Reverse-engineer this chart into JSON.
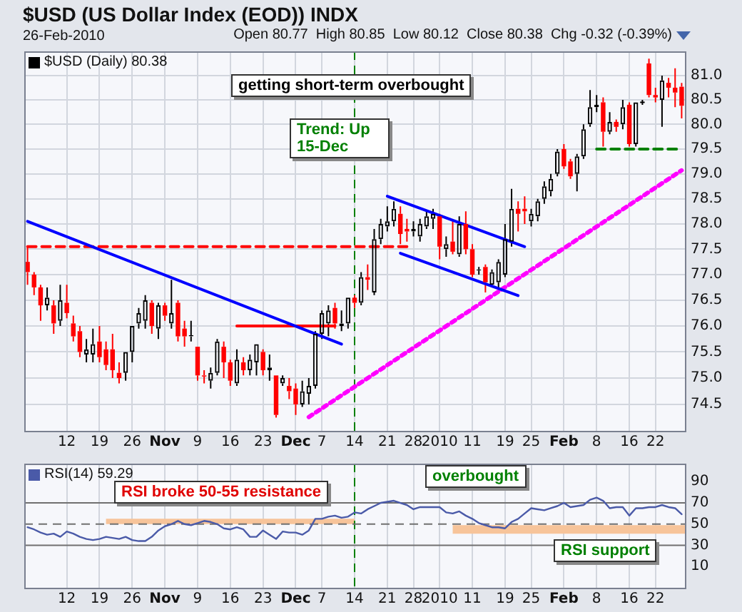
{
  "chart_data": [
    {
      "type": "candlestick",
      "title": "$USD (US Dollar Index (EOD)) INDX",
      "subtitle": "26-Feb-2010",
      "annotations": [
        "Open 80.77  High 80.85  Low 80.12  Close 80.38  Chg -0.32 (-0.39%)",
        "getting short-term overbought",
        "Trend: Up 15-Dec"
      ],
      "categories": [
        null,
        null,
        null,
        null,
        null,
        null,
        "12",
        null,
        null,
        null,
        null,
        "19",
        null,
        null,
        null,
        null,
        "26",
        null,
        null,
        null,
        null,
        "Nov",
        null,
        null,
        null,
        null,
        "9",
        null,
        null,
        null,
        null,
        "16",
        null,
        null,
        null,
        null,
        "23",
        null,
        null,
        null,
        null,
        "Dec",
        null,
        null,
        null,
        "7",
        null,
        null,
        null,
        null,
        "14",
        null,
        null,
        null,
        null,
        "21",
        null,
        null,
        null,
        "28",
        null,
        null,
        null,
        "2010",
        null,
        null,
        null,
        null,
        "11",
        null,
        null,
        null,
        null,
        "19",
        null,
        null,
        null,
        "25",
        null,
        null,
        null,
        null,
        "Feb",
        null,
        null,
        null,
        null,
        "8",
        null,
        null,
        null,
        null,
        "16",
        null,
        null,
        null,
        "22",
        null,
        null,
        null,
        null
      ],
      "series": [
        {
          "name": "$USD (Daily) 80.38",
          "type": "candlestick",
          "color": "#000000",
          "colors": [
            "#ff0000",
            "#ff0000",
            "#ff0000",
            "#000000",
            "#ff0000",
            "#000000",
            "#ff0000",
            "#ff0000",
            "#ff0000",
            "#000000",
            "#000000",
            "#ff0000",
            "#ff0000",
            "#ff0000",
            "#ff0000",
            "#000000",
            "#000000",
            "#000000",
            "#000000",
            "#ff0000",
            "#000000",
            "#ff0000",
            "#000000",
            "#ff0000",
            "#ff0000",
            "#000000",
            "#ff0000",
            "#ff0000",
            "#000000",
            "#000000",
            "#ff0000",
            "#ff0000",
            "#000000",
            "#ff0000",
            "#000000",
            "#000000",
            "#ff0000",
            "#000000",
            "#ff0000",
            "#000000",
            "#ff0000",
            "#ff0000",
            "#000000",
            "#000000",
            "#000000",
            "#000000",
            "#000000",
            "#ff0000",
            "#000000",
            "#000000",
            "#ff0000",
            "#000000",
            "#ff0000",
            "#000000",
            "#000000",
            "#000000",
            "#000000",
            "#ff0000",
            "#ff0000",
            "#000000",
            "#000000",
            "#000000",
            "#000000",
            "#ff0000",
            "#000000",
            "#ff0000",
            "#000000",
            "#ff0000",
            "#ff0000",
            "#000000",
            "#ff0000",
            "#000000",
            "#000000",
            "#000000",
            "#000000",
            "#ff0000",
            "#ff0000",
            "#000000",
            "#000000",
            "#000000",
            "#000000",
            "#000000",
            "#ff0000",
            "#ff0000",
            "#000000",
            "#000000",
            "#000000",
            "#000000",
            "#ff0000",
            "#000000",
            "#ff0000",
            "#000000",
            "#ff0000",
            "#000000",
            "#000000",
            "#ff0000",
            "#ff0000",
            "#000000",
            "#ff0000",
            "#ff0000",
            "#ff0000"
          ],
          "ohlc": [
            [
              77.25,
              77.55,
              76.8,
              77.05
            ],
            [
              77.0,
              77.05,
              76.6,
              76.75
            ],
            [
              76.75,
              76.8,
              76.1,
              76.4
            ],
            [
              76.4,
              76.75,
              76.3,
              76.55
            ],
            [
              76.4,
              76.5,
              75.85,
              76.05
            ],
            [
              76.1,
              76.8,
              76.0,
              76.5
            ],
            [
              76.45,
              76.8,
              76.15,
              76.25
            ],
            [
              76.05,
              76.2,
              75.7,
              75.8
            ],
            [
              75.9,
              76.0,
              75.4,
              75.5
            ],
            [
              75.45,
              75.75,
              75.3,
              75.55
            ],
            [
              75.45,
              75.95,
              75.3,
              75.65
            ],
            [
              75.7,
              76.0,
              75.3,
              75.4
            ],
            [
              75.55,
              75.7,
              75.15,
              75.25
            ],
            [
              75.55,
              75.85,
              75.0,
              75.15
            ],
            [
              75.1,
              75.3,
              74.9,
              75.0
            ],
            [
              75.1,
              75.5,
              74.95,
              75.5
            ],
            [
              75.5,
              76.0,
              75.3,
              76.0
            ],
            [
              76.05,
              76.35,
              75.95,
              76.25
            ],
            [
              76.1,
              76.6,
              75.95,
              76.5
            ],
            [
              76.45,
              76.5,
              75.85,
              76.0
            ],
            [
              75.95,
              76.45,
              75.75,
              76.4
            ],
            [
              76.4,
              76.45,
              76.1,
              76.2
            ],
            [
              76.05,
              76.9,
              75.95,
              76.25
            ],
            [
              76.45,
              76.5,
              75.7,
              75.8
            ],
            [
              75.95,
              76.1,
              75.6,
              75.8
            ],
            [
              75.8,
              76.1,
              75.7,
              75.82
            ],
            [
              75.6,
              75.6,
              74.95,
              75.05
            ],
            [
              75.05,
              75.15,
              74.9,
              75.03
            ],
            [
              74.95,
              75.2,
              74.8,
              75.1
            ],
            [
              75.1,
              75.75,
              75.05,
              75.7
            ],
            [
              75.6,
              75.7,
              75.0,
              75.3
            ],
            [
              75.3,
              75.35,
              74.85,
              74.95
            ],
            [
              74.9,
              75.55,
              74.85,
              75.35
            ],
            [
              75.3,
              75.4,
              75.05,
              75.15
            ],
            [
              75.15,
              75.45,
              75.05,
              75.35
            ],
            [
              75.3,
              75.65,
              75.05,
              75.65
            ],
            [
              75.5,
              75.55,
              75.05,
              75.15
            ],
            [
              75.15,
              75.45,
              74.95,
              75.2
            ],
            [
              75.05,
              75.05,
              74.25,
              74.3
            ],
            [
              74.9,
              75.05,
              74.85,
              75.0
            ],
            [
              74.85,
              75.0,
              74.6,
              74.75
            ],
            [
              74.8,
              74.9,
              74.3,
              74.5
            ],
            [
              74.5,
              74.95,
              74.45,
              74.75
            ],
            [
              74.7,
              75.0,
              74.5,
              74.85
            ],
            [
              74.85,
              75.9,
              74.8,
              75.85
            ],
            [
              75.85,
              76.3,
              75.75,
              76.25
            ],
            [
              76.05,
              76.4,
              75.8,
              76.3
            ],
            [
              76.35,
              76.45,
              75.95,
              76.05
            ],
            [
              76.0,
              76.3,
              75.9,
              76.05
            ],
            [
              76.05,
              76.55,
              75.95,
              76.55
            ],
            [
              76.55,
              76.6,
              76.35,
              76.45
            ],
            [
              76.45,
              77.05,
              76.4,
              76.95
            ],
            [
              76.95,
              77.2,
              76.7,
              76.9
            ],
            [
              76.65,
              77.9,
              76.6,
              77.7
            ],
            [
              77.7,
              78.1,
              77.6,
              78.0
            ],
            [
              77.95,
              78.35,
              77.85,
              78.05
            ],
            [
              78.05,
              78.45,
              77.95,
              78.3
            ],
            [
              78.2,
              78.35,
              77.6,
              77.8
            ],
            [
              77.9,
              78.1,
              77.65,
              77.85
            ],
            [
              77.85,
              78.05,
              77.75,
              77.9
            ],
            [
              77.75,
              78.1,
              77.65,
              78.0
            ],
            [
              77.95,
              78.25,
              77.9,
              78.15
            ],
            [
              78.1,
              78.3,
              77.9,
              78.2
            ],
            [
              78.15,
              78.2,
              77.3,
              77.55
            ],
            [
              77.5,
              77.75,
              77.35,
              77.6
            ],
            [
              77.65,
              78.05,
              77.4,
              77.45
            ],
            [
              77.4,
              78.15,
              77.35,
              78.0
            ],
            [
              78.0,
              78.25,
              77.4,
              77.5
            ],
            [
              77.5,
              77.6,
              76.95,
              77.0
            ],
            [
              77.08,
              77.15,
              77.0,
              77.1
            ],
            [
              77.15,
              77.2,
              76.65,
              76.85
            ],
            [
              76.8,
              77.1,
              76.75,
              77.05
            ],
            [
              76.85,
              77.3,
              76.75,
              77.25
            ],
            [
              77.0,
              78.0,
              76.95,
              77.7
            ],
            [
              77.65,
              78.7,
              77.55,
              78.3
            ],
            [
              78.3,
              78.45,
              77.85,
              78.2
            ],
            [
              78.3,
              78.55,
              78.0,
              78.25
            ],
            [
              78.05,
              78.3,
              77.95,
              78.2
            ],
            [
              78.15,
              78.5,
              78.05,
              78.45
            ],
            [
              78.5,
              78.85,
              78.4,
              78.75
            ],
            [
              78.65,
              79.0,
              78.55,
              78.9
            ],
            [
              79.0,
              79.5,
              78.95,
              79.45
            ],
            [
              79.5,
              79.6,
              79.1,
              79.15
            ],
            [
              79.25,
              79.3,
              78.9,
              78.95
            ],
            [
              79.0,
              79.4,
              78.65,
              79.35
            ],
            [
              79.35,
              80.0,
              79.3,
              79.9
            ],
            [
              80.0,
              80.7,
              79.95,
              80.35
            ],
            [
              80.35,
              80.6,
              80.25,
              80.4
            ],
            [
              80.45,
              80.55,
              79.55,
              79.85
            ],
            [
              79.85,
              80.25,
              79.8,
              80.05
            ],
            [
              80.05,
              80.1,
              79.85,
              79.95
            ],
            [
              80.0,
              80.5,
              79.9,
              80.35
            ],
            [
              80.4,
              80.45,
              79.55,
              79.6
            ],
            [
              79.6,
              80.45,
              79.55,
              80.45
            ],
            [
              80.45,
              80.5,
              80.4,
              80.45
            ],
            [
              81.25,
              81.35,
              80.55,
              80.6
            ],
            [
              80.6,
              80.75,
              80.45,
              80.55
            ],
            [
              80.5,
              81.0,
              79.95,
              80.9
            ],
            [
              80.85,
              80.95,
              80.55,
              80.75
            ],
            [
              80.75,
              81.15,
              80.35,
              80.65
            ],
            [
              80.77,
              80.85,
              80.12,
              80.38
            ]
          ]
        },
        {
          "type": "line",
          "color": "#0000ff",
          "line_style": "solid",
          "values": [
            78.05,
            null,
            null,
            null,
            null,
            null,
            null,
            null,
            null,
            null,
            null,
            null,
            null,
            null,
            null,
            null,
            null,
            null,
            null,
            null,
            null,
            null,
            null,
            null,
            null,
            null,
            null,
            null,
            null,
            null,
            null,
            null,
            null,
            null,
            null,
            null,
            null,
            null,
            null,
            null,
            null,
            null,
            null,
            null,
            null,
            null,
            null,
            null,
            75.65,
            null,
            null,
            null,
            null,
            null,
            null,
            null,
            null,
            null,
            null,
            null,
            null,
            null,
            null,
            null,
            null,
            null,
            null,
            null,
            null,
            null,
            null,
            null,
            null,
            null,
            null,
            null,
            null,
            null,
            null,
            null,
            null,
            null,
            null,
            null,
            null,
            null,
            null,
            null,
            null,
            null,
            null,
            null,
            null,
            null,
            null,
            null,
            null,
            null,
            null,
            null,
            null
          ]
        },
        {
          "type": "line",
          "color": "#ff0000",
          "line_style": "dashed",
          "values": [
            77.55,
            null,
            null,
            null,
            null,
            null,
            null,
            null,
            null,
            null,
            null,
            null,
            null,
            null,
            null,
            null,
            null,
            null,
            null,
            null,
            null,
            null,
            null,
            null,
            null,
            null,
            null,
            null,
            null,
            null,
            null,
            null,
            null,
            null,
            null,
            null,
            null,
            null,
            null,
            null,
            null,
            null,
            null,
            null,
            null,
            null,
            null,
            null,
            null,
            null,
            null,
            null,
            null,
            null,
            null,
            null,
            null,
            null,
            77.55,
            null,
            null,
            null,
            null,
            null,
            null,
            null,
            null,
            null,
            null,
            null,
            null,
            null,
            null,
            null,
            null,
            null,
            null,
            null,
            null,
            null,
            null,
            null,
            null,
            null,
            null,
            null,
            null,
            null,
            null,
            null,
            null,
            null,
            null,
            null,
            null,
            null,
            null,
            null,
            null,
            null,
            null
          ]
        },
        {
          "type": "line",
          "color": "#ff0000",
          "line_style": "solid",
          "values": [
            null,
            null,
            null,
            null,
            null,
            null,
            null,
            null,
            null,
            null,
            null,
            null,
            null,
            null,
            null,
            null,
            null,
            null,
            null,
            null,
            null,
            null,
            null,
            null,
            null,
            null,
            null,
            null,
            null,
            null,
            null,
            null,
            76.0,
            null,
            null,
            null,
            null,
            null,
            null,
            null,
            null,
            null,
            null,
            null,
            null,
            null,
            null,
            76.0,
            null,
            null,
            null,
            null,
            null,
            null,
            null,
            null,
            null,
            null,
            null,
            null,
            null,
            null,
            null,
            null,
            null,
            null,
            null,
            null,
            null,
            null,
            null,
            null,
            null,
            null,
            null,
            null,
            null,
            null,
            null,
            null,
            null,
            null,
            null,
            null,
            null,
            null,
            null,
            null,
            null,
            null,
            null,
            null,
            null,
            null,
            null,
            null,
            null,
            null,
            null,
            null,
            null
          ]
        },
        {
          "type": "line",
          "color": "#0000ff",
          "line_style": "solid",
          "values": [
            null,
            null,
            null,
            null,
            null,
            null,
            null,
            null,
            null,
            null,
            null,
            null,
            null,
            null,
            null,
            null,
            null,
            null,
            null,
            null,
            null,
            null,
            null,
            null,
            null,
            null,
            null,
            null,
            null,
            null,
            null,
            null,
            null,
            null,
            null,
            null,
            null,
            null,
            null,
            null,
            null,
            null,
            null,
            null,
            null,
            null,
            null,
            null,
            null,
            null,
            null,
            null,
            null,
            null,
            null,
            78.55,
            null,
            null,
            null,
            null,
            null,
            null,
            null,
            null,
            null,
            null,
            null,
            null,
            null,
            null,
            null,
            null,
            null,
            null,
            null,
            null,
            77.55,
            null,
            null,
            null,
            null,
            null,
            null,
            null,
            null,
            null,
            null,
            null,
            null,
            null,
            null,
            null,
            null,
            null,
            null,
            null,
            null,
            null,
            null,
            null,
            null
          ]
        },
        {
          "type": "line",
          "color": "#0000ff",
          "line_style": "solid",
          "values": [
            null,
            null,
            null,
            null,
            null,
            null,
            null,
            null,
            null,
            null,
            null,
            null,
            null,
            null,
            null,
            null,
            null,
            null,
            null,
            null,
            null,
            null,
            null,
            null,
            null,
            null,
            null,
            null,
            null,
            null,
            null,
            null,
            null,
            null,
            null,
            null,
            null,
            null,
            null,
            null,
            null,
            null,
            null,
            null,
            null,
            null,
            null,
            null,
            null,
            null,
            null,
            null,
            null,
            null,
            null,
            null,
            null,
            77.42,
            null,
            null,
            null,
            null,
            null,
            null,
            null,
            null,
            null,
            null,
            null,
            null,
            null,
            null,
            null,
            null,
            null,
            76.59,
            null,
            null,
            null,
            null,
            null,
            null,
            null,
            null,
            null,
            null,
            null,
            null,
            null,
            null,
            null,
            null,
            null,
            null,
            null,
            null,
            null,
            null,
            null,
            null,
            null
          ]
        },
        {
          "type": "line",
          "color": "#ff00ff",
          "line_style": "dotted",
          "values": [
            null,
            null,
            null,
            null,
            null,
            null,
            null,
            null,
            null,
            null,
            null,
            null,
            null,
            null,
            null,
            null,
            null,
            null,
            null,
            null,
            null,
            null,
            null,
            null,
            null,
            null,
            null,
            null,
            null,
            null,
            null,
            null,
            null,
            null,
            null,
            null,
            null,
            null,
            null,
            null,
            null,
            null,
            null,
            74.26,
            null,
            null,
            null,
            null,
            null,
            null,
            null,
            null,
            null,
            null,
            null,
            null,
            null,
            null,
            null,
            null,
            null,
            null,
            null,
            null,
            null,
            null,
            null,
            null,
            null,
            null,
            null,
            null,
            null,
            null,
            null,
            null,
            null,
            null,
            null,
            null,
            null,
            null,
            null,
            null,
            null,
            null,
            null,
            null,
            null,
            null,
            null,
            null,
            null,
            null,
            null,
            null,
            null,
            null,
            null,
            null,
            79.07
          ]
        },
        {
          "type": "line",
          "color": "#008000",
          "line_style": "dashed",
          "values": [
            null,
            null,
            null,
            null,
            null,
            null,
            null,
            null,
            null,
            null,
            null,
            null,
            null,
            null,
            null,
            null,
            null,
            null,
            null,
            null,
            null,
            null,
            null,
            null,
            null,
            null,
            null,
            null,
            null,
            null,
            null,
            null,
            null,
            null,
            null,
            null,
            null,
            null,
            null,
            null,
            null,
            null,
            null,
            null,
            null,
            null,
            null,
            null,
            null,
            null,
            null,
            null,
            null,
            null,
            null,
            null,
            null,
            null,
            null,
            null,
            null,
            null,
            null,
            null,
            null,
            null,
            null,
            null,
            null,
            null,
            null,
            null,
            null,
            null,
            null,
            null,
            null,
            null,
            null,
            null,
            null,
            null,
            null,
            null,
            null,
            null,
            null,
            79.5,
            null,
            null,
            null,
            null,
            null,
            null,
            null,
            null,
            null,
            null,
            null,
            null,
            79.5
          ]
        }
      ],
      "ylim": [
        74.0,
        81.5
      ],
      "yticks": [
        {
          "value": 74.5,
          "label": "74.5"
        },
        {
          "value": 75,
          "label": "75.0"
        },
        {
          "value": 75.5,
          "label": "75.5"
        },
        {
          "value": 76,
          "label": "76.0"
        },
        {
          "value": 76.5,
          "label": "76.5"
        },
        {
          "value": 77,
          "label": "77.0"
        },
        {
          "value": 77.5,
          "label": "77.5"
        },
        {
          "value": 78,
          "label": "78.0"
        },
        {
          "value": 78.5,
          "label": "78.5"
        },
        {
          "value": 79,
          "label": "79.0"
        },
        {
          "value": 79.5,
          "label": "79.5"
        },
        {
          "value": 80,
          "label": "80.0"
        },
        {
          "value": 80.5,
          "label": "80.5"
        },
        {
          "value": 81,
          "label": "81.0"
        }
      ],
      "log": true,
      "grid": true,
      "legend": "top left",
      "ref_lines": [
        {
          "axis": "x",
          "value": "14",
          "color": "#008000",
          "line_style": "dashed"
        }
      ]
    },
    {
      "type": "line",
      "annotations": [
        "RSI broke 50-55 resistance",
        "overbought",
        "RSI support"
      ],
      "categories": [
        null,
        null,
        null,
        null,
        null,
        null,
        "12",
        null,
        null,
        null,
        null,
        "19",
        null,
        null,
        null,
        null,
        "26",
        null,
        null,
        null,
        null,
        "Nov",
        null,
        null,
        null,
        null,
        "9",
        null,
        null,
        null,
        null,
        "16",
        null,
        null,
        null,
        null,
        "23",
        null,
        null,
        null,
        null,
        "Dec",
        null,
        null,
        null,
        "7",
        null,
        null,
        null,
        null,
        "14",
        null,
        null,
        null,
        null,
        "21",
        null,
        null,
        null,
        "28",
        null,
        null,
        null,
        "2010",
        null,
        null,
        null,
        null,
        "11",
        null,
        null,
        null,
        null,
        "19",
        null,
        null,
        null,
        "25",
        null,
        null,
        null,
        null,
        "Feb",
        null,
        null,
        null,
        null,
        "8",
        null,
        null,
        null,
        null,
        "16",
        null,
        null,
        null,
        "22",
        null,
        null,
        null,
        null
      ],
      "series": [
        {
          "name": "RSI(14) 59.29",
          "color": "#4a5aa8",
          "values": [
            47,
            45,
            42,
            40,
            41,
            38,
            43,
            41,
            38,
            36,
            35,
            36,
            38,
            37,
            36,
            38,
            35,
            34,
            34,
            38,
            44,
            48,
            50,
            53,
            50,
            49,
            51,
            53,
            52,
            50,
            46,
            45,
            47,
            45,
            38,
            38,
            44,
            40,
            36,
            43,
            42,
            42,
            40,
            44,
            55,
            55,
            57,
            58,
            56,
            57,
            61,
            60,
            64,
            67,
            70,
            71,
            72,
            70,
            68,
            64,
            66,
            66,
            66,
            66,
            61,
            60,
            62,
            58,
            55,
            51,
            49,
            47,
            47,
            46,
            52,
            55,
            60,
            65,
            64,
            63,
            65,
            67,
            70,
            66,
            67,
            68,
            73,
            75,
            72,
            65,
            66,
            66,
            58,
            65,
            65,
            66,
            66,
            68,
            66,
            65,
            59.29
          ]
        }
      ],
      "ylim": [
        -10,
        107
      ],
      "yticks": [
        10,
        30,
        50,
        70,
        90
      ],
      "grid": "x",
      "legend": "top left",
      "ref_lines": [
        {
          "axis": "x",
          "value": "14",
          "color": "#008000",
          "line_style": "dashed"
        },
        {
          "axis": "y",
          "value": 70,
          "color": "#707070",
          "line_style": "solid"
        },
        {
          "axis": "y",
          "value": 50,
          "color": "#707070",
          "line_style": "dashed"
        },
        {
          "axis": "y",
          "value": 30,
          "color": "#707070",
          "line_style": "solid"
        }
      ],
      "bands": [
        {
          "axis": "y",
          "from": 50,
          "to": 55,
          "color": "#f7c49a"
        },
        {
          "axis": "y",
          "from": 41,
          "to": 49,
          "color": "#f7c49a"
        }
      ]
    }
  ]
}
